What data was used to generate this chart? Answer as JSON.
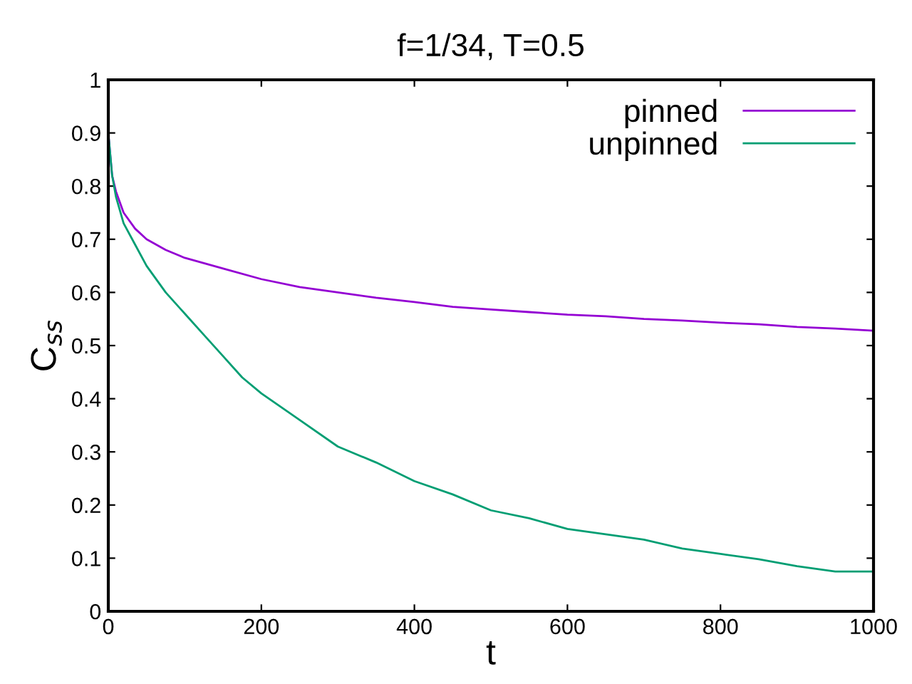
{
  "chart_data": {
    "type": "line",
    "title": "f=1/34, T=0.5",
    "xlabel": "t",
    "ylabel": "C$_{ss}$",
    "series": [
      {
        "name": "pinned",
        "color": "#9400d3",
        "x": [
          0,
          5,
          10,
          20,
          35,
          50,
          75,
          100,
          150,
          200,
          250,
          300,
          350,
          400,
          450,
          500,
          550,
          600,
          650,
          700,
          750,
          800,
          850,
          900,
          950,
          1000
        ],
        "values": [
          0.9,
          0.82,
          0.79,
          0.75,
          0.72,
          0.7,
          0.68,
          0.665,
          0.645,
          0.625,
          0.61,
          0.6,
          0.59,
          0.582,
          0.573,
          0.568,
          0.563,
          0.558,
          0.555,
          0.55,
          0.547,
          0.543,
          0.54,
          0.535,
          0.532,
          0.528
        ]
      },
      {
        "name": "unpinned",
        "color": "#009e73",
        "x": [
          0,
          5,
          10,
          20,
          35,
          50,
          75,
          100,
          125,
          150,
          175,
          200,
          250,
          300,
          350,
          400,
          450,
          500,
          550,
          600,
          650,
          700,
          750,
          800,
          850,
          900,
          950,
          1000
        ],
        "values": [
          0.9,
          0.82,
          0.78,
          0.73,
          0.69,
          0.65,
          0.6,
          0.56,
          0.52,
          0.48,
          0.44,
          0.41,
          0.36,
          0.31,
          0.28,
          0.245,
          0.22,
          0.19,
          0.175,
          0.155,
          0.145,
          0.135,
          0.118,
          0.108,
          0.098,
          0.085,
          0.075,
          0.075
        ]
      }
    ],
    "xlim": [
      0,
      1000
    ],
    "ylim": [
      0,
      1
    ],
    "xticks": [
      0,
      200,
      400,
      600,
      800,
      1000
    ],
    "yticks": [
      0,
      0.1,
      0.2,
      0.3,
      0.4,
      0.5,
      0.6,
      0.7,
      0.8,
      0.9,
      1
    ],
    "grid": false,
    "legend": "top right"
  }
}
